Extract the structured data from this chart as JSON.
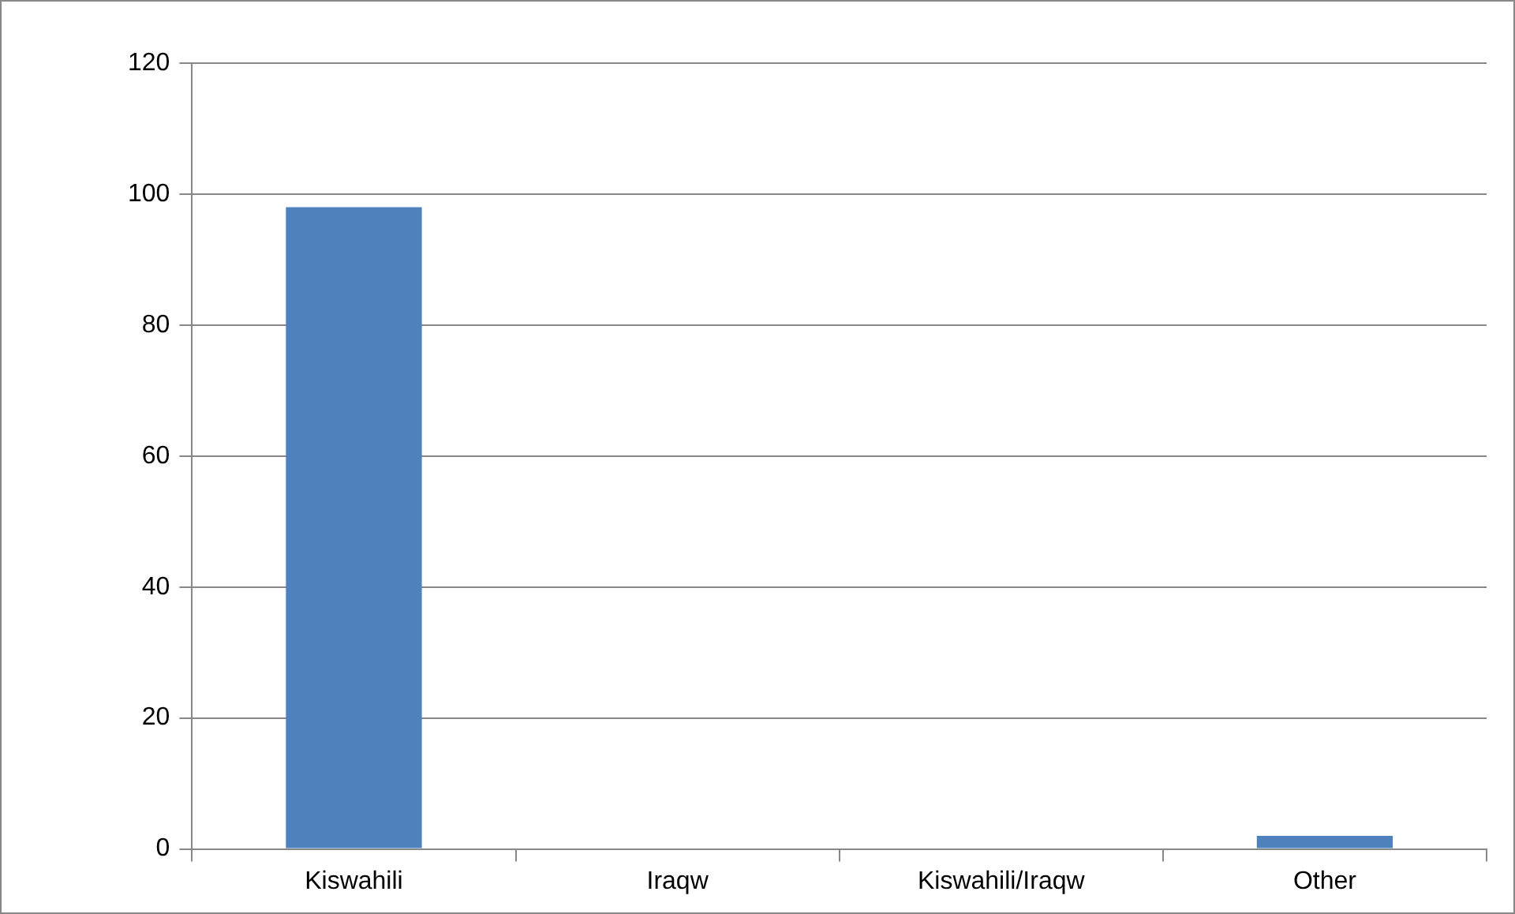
{
  "chart_data": {
    "type": "bar",
    "categories": [
      "Kiswahili",
      "Iraqw",
      "Kiswahili/Iraqw",
      "Other"
    ],
    "values": [
      98,
      0,
      0,
      2
    ],
    "color": "#4f81bd",
    "ylim": [
      0,
      120
    ],
    "yticks": [
      0,
      20,
      40,
      60,
      80,
      100,
      120
    ],
    "grid": "y",
    "legend": false
  }
}
